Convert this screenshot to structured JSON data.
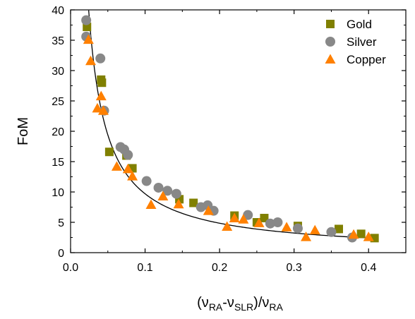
{
  "chart_data": {
    "type": "scatter",
    "xlabel": {
      "parts": [
        {
          "text": "(ν",
          "sub": false
        },
        {
          "text": "RA",
          "sub": true
        },
        {
          "text": "-ν",
          "sub": false
        },
        {
          "text": "SLR",
          "sub": true
        },
        {
          "text": ")/ν",
          "sub": false
        },
        {
          "text": "RA",
          "sub": true
        }
      ]
    },
    "ylabel": "FoM",
    "xlim": [
      0.0,
      0.45
    ],
    "ylim": [
      0,
      40
    ],
    "xticks": [
      0.0,
      0.1,
      0.2,
      0.3,
      0.4
    ],
    "xtick_labels": [
      "0.0",
      "0.1",
      "0.2",
      "0.3",
      "0.4"
    ],
    "yticks": [
      0,
      5,
      10,
      15,
      20,
      25,
      30,
      35,
      40
    ],
    "ytick_labels": [
      "0",
      "5",
      "10",
      "15",
      "20",
      "25",
      "30",
      "35",
      "40"
    ],
    "grid": false,
    "legend_position": "top-right",
    "series": [
      {
        "name": "Gold",
        "marker": "square",
        "color": "#808000",
        "points": [
          [
            0.022,
            37.2
          ],
          [
            0.041,
            28.5
          ],
          [
            0.042,
            28.0
          ],
          [
            0.052,
            16.6
          ],
          [
            0.075,
            16.0
          ],
          [
            0.083,
            13.9
          ],
          [
            0.146,
            8.8
          ],
          [
            0.165,
            8.2
          ],
          [
            0.22,
            6.1
          ],
          [
            0.25,
            5.0
          ],
          [
            0.26,
            5.7
          ],
          [
            0.305,
            4.4
          ],
          [
            0.36,
            3.9
          ],
          [
            0.39,
            3.1
          ],
          [
            0.408,
            2.4
          ]
        ]
      },
      {
        "name": "Silver",
        "marker": "circle",
        "color": "#888888",
        "points": [
          [
            0.021,
            38.3
          ],
          [
            0.021,
            35.6
          ],
          [
            0.04,
            32.0
          ],
          [
            0.045,
            23.4
          ],
          [
            0.067,
            17.4
          ],
          [
            0.072,
            17.0
          ],
          [
            0.077,
            16.1
          ],
          [
            0.102,
            11.8
          ],
          [
            0.118,
            10.7
          ],
          [
            0.13,
            10.2
          ],
          [
            0.142,
            9.7
          ],
          [
            0.175,
            7.5
          ],
          [
            0.184,
            7.8
          ],
          [
            0.192,
            6.9
          ],
          [
            0.238,
            6.2
          ],
          [
            0.268,
            4.8
          ],
          [
            0.278,
            5.0
          ],
          [
            0.305,
            4.0
          ],
          [
            0.35,
            3.4
          ],
          [
            0.378,
            2.5
          ]
        ]
      },
      {
        "name": "Copper",
        "marker": "triangle",
        "color": "#FF8000",
        "points": [
          [
            0.024,
            35.1
          ],
          [
            0.027,
            31.6
          ],
          [
            0.036,
            23.8
          ],
          [
            0.041,
            25.8
          ],
          [
            0.044,
            23.4
          ],
          [
            0.062,
            14.2
          ],
          [
            0.077,
            13.8
          ],
          [
            0.083,
            12.6
          ],
          [
            0.108,
            7.9
          ],
          [
            0.124,
            9.3
          ],
          [
            0.145,
            8.0
          ],
          [
            0.185,
            6.9
          ],
          [
            0.21,
            4.3
          ],
          [
            0.22,
            5.7
          ],
          [
            0.232,
            5.5
          ],
          [
            0.253,
            4.9
          ],
          [
            0.29,
            4.2
          ],
          [
            0.316,
            2.6
          ],
          [
            0.328,
            3.7
          ],
          [
            0.38,
            3.0
          ],
          [
            0.4,
            2.6
          ]
        ]
      }
    ],
    "fit_curve": {
      "color": "#000000",
      "description": "reciprocal fit FoM ≈ a / x",
      "a": 0.97,
      "x_range": [
        0.0243,
        0.41
      ]
    }
  }
}
